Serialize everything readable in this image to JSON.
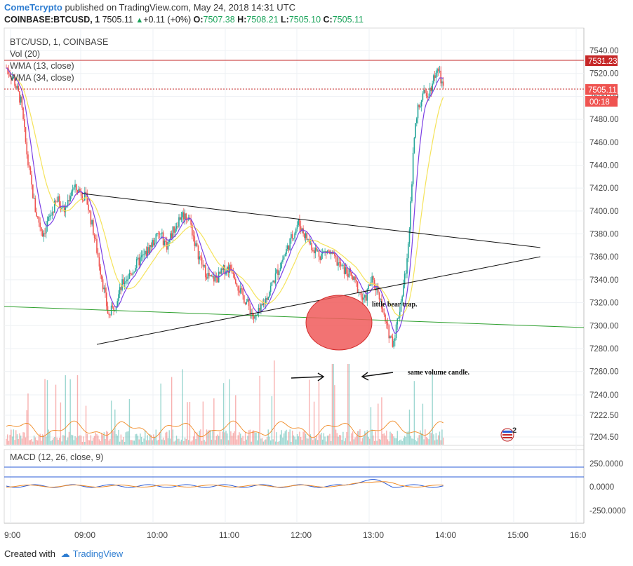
{
  "header": {
    "brand": "ComeTcrypto",
    "published": "published on TradingView.com, May 24, 2018 14:31 UTC",
    "symbol": "COINBASE:BTCUSD, 1",
    "last": "7505.11",
    "change_arrow": "▲",
    "change": "+0.11 (+0%)",
    "o_label": "O:",
    "o": "7507.38",
    "h_label": "H:",
    "h": "7508.21",
    "l_label": "L:",
    "l": "7505.10",
    "c_label": "C:",
    "c": "7505.11"
  },
  "legend": {
    "symbol": "BTC/USD, 1, COINBASE",
    "vol": "Vol (20)",
    "wma13": "WMA (13, close)",
    "wma34": "WMA (34, close)",
    "macd": "MACD (12, 26, close, 9)"
  },
  "price_badges": {
    "resistance": "7531.23",
    "last": "7505.11",
    "countdown": "00:18"
  },
  "annotations": {
    "trap": "little bear trap.",
    "volume": "same volume candle.",
    "events_badge": "2"
  },
  "footer": {
    "created_with": "Created with",
    "tradingview": "TradingView"
  },
  "colors": {
    "up": "#26a69a",
    "down": "#ef5350",
    "wma13": "#7b3fe4",
    "wma34": "#f5e35b",
    "resistance": "#c62828",
    "support_green": "#2ea02e",
    "trendline": "#111111",
    "ellipse_fill": "#f05a5a",
    "macd_line": "#2a5bd7",
    "signal": "#f08a24"
  },
  "chart_data": {
    "type": "candlestick",
    "symbol": "COINBASE:BTCUSD",
    "interval": "1",
    "date": "May 24, 2018",
    "x_ticks": [
      "9:00",
      "09:00",
      "10:00",
      "11:00",
      "12:00",
      "13:00",
      "14:00",
      "15:00",
      "16:0"
    ],
    "price_ticks": [
      "7540.00",
      "7520.00",
      "7500.00",
      "7480.00",
      "7460.00",
      "7440.00",
      "7420.00",
      "7400.00",
      "7380.00",
      "7360.00",
      "7340.00",
      "7320.00",
      "7300.00",
      "7280.00",
      "7260.00",
      "7240.00",
      "7222.50",
      "7204.50"
    ],
    "macd_ticks": [
      "250.0000",
      "0.0000",
      "-250.0000"
    ],
    "ylim": [
      7200,
      7545
    ],
    "close_path": [
      {
        "t": "08:00",
        "p": 7525
      },
      {
        "t": "08:06",
        "p": 7515
      },
      {
        "t": "08:12",
        "p": 7495
      },
      {
        "t": "08:18",
        "p": 7440
      },
      {
        "t": "08:24",
        "p": 7400
      },
      {
        "t": "08:30",
        "p": 7380
      },
      {
        "t": "08:36",
        "p": 7395
      },
      {
        "t": "08:42",
        "p": 7410
      },
      {
        "t": "08:48",
        "p": 7400
      },
      {
        "t": "08:54",
        "p": 7420
      },
      {
        "t": "09:00",
        "p": 7418
      },
      {
        "t": "09:06",
        "p": 7410
      },
      {
        "t": "09:12",
        "p": 7380
      },
      {
        "t": "09:18",
        "p": 7345
      },
      {
        "t": "09:24",
        "p": 7308
      },
      {
        "t": "09:30",
        "p": 7320
      },
      {
        "t": "09:36",
        "p": 7338
      },
      {
        "t": "09:42",
        "p": 7345
      },
      {
        "t": "09:48",
        "p": 7355
      },
      {
        "t": "09:54",
        "p": 7362
      },
      {
        "t": "10:00",
        "p": 7372
      },
      {
        "t": "10:06",
        "p": 7380
      },
      {
        "t": "10:12",
        "p": 7370
      },
      {
        "t": "10:18",
        "p": 7385
      },
      {
        "t": "10:24",
        "p": 7397
      },
      {
        "t": "10:30",
        "p": 7395
      },
      {
        "t": "10:36",
        "p": 7368
      },
      {
        "t": "10:42",
        "p": 7350
      },
      {
        "t": "10:48",
        "p": 7340
      },
      {
        "t": "10:54",
        "p": 7342
      },
      {
        "t": "11:00",
        "p": 7350
      },
      {
        "t": "11:06",
        "p": 7350
      },
      {
        "t": "11:12",
        "p": 7330
      },
      {
        "t": "11:18",
        "p": 7320
      },
      {
        "t": "11:24",
        "p": 7305
      },
      {
        "t": "11:30",
        "p": 7315
      },
      {
        "t": "11:36",
        "p": 7330
      },
      {
        "t": "11:42",
        "p": 7345
      },
      {
        "t": "11:48",
        "p": 7360
      },
      {
        "t": "11:54",
        "p": 7375
      },
      {
        "t": "12:00",
        "p": 7390
      },
      {
        "t": "12:06",
        "p": 7378
      },
      {
        "t": "12:12",
        "p": 7368
      },
      {
        "t": "12:18",
        "p": 7362
      },
      {
        "t": "12:24",
        "p": 7365
      },
      {
        "t": "12:30",
        "p": 7358
      },
      {
        "t": "12:36",
        "p": 7350
      },
      {
        "t": "12:42",
        "p": 7345
      },
      {
        "t": "12:48",
        "p": 7335
      },
      {
        "t": "12:54",
        "p": 7320
      },
      {
        "t": "13:00",
        "p": 7340
      },
      {
        "t": "13:06",
        "p": 7330
      },
      {
        "t": "13:12",
        "p": 7300
      },
      {
        "t": "13:18",
        "p": 7285
      },
      {
        "t": "13:24",
        "p": 7318
      },
      {
        "t": "13:30",
        "p": 7360
      },
      {
        "t": "13:36",
        "p": 7480
      },
      {
        "t": "13:42",
        "p": 7500
      },
      {
        "t": "13:48",
        "p": 7505
      },
      {
        "t": "13:54",
        "p": 7525
      },
      {
        "t": "14:00",
        "p": 7505
      }
    ],
    "series": [
      {
        "name": "WMA (13, close)",
        "color": "#7b3fe4"
      },
      {
        "name": "WMA (34, close)",
        "color": "#f5e35b"
      },
      {
        "name": "Vol (20)"
      },
      {
        "name": "MACD (12, 26, close, 9)"
      }
    ],
    "horizontal_levels": [
      7531.23,
      7505.11
    ]
  }
}
